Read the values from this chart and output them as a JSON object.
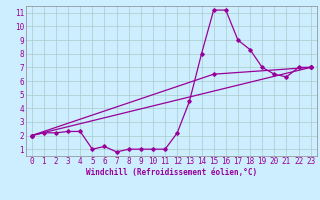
{
  "background_color": "#cceeff",
  "grid_color": "#aacccc",
  "line_color": "#990099",
  "xlabel": "Windchill (Refroidissement éolien,°C)",
  "xlim": [
    -0.5,
    23.5
  ],
  "ylim": [
    0.5,
    11.5
  ],
  "xticks": [
    0,
    1,
    2,
    3,
    4,
    5,
    6,
    7,
    8,
    9,
    10,
    11,
    12,
    13,
    14,
    15,
    16,
    17,
    18,
    19,
    20,
    21,
    22,
    23
  ],
  "yticks": [
    1,
    2,
    3,
    4,
    5,
    6,
    7,
    8,
    9,
    10,
    11
  ],
  "line1_x": [
    0,
    1,
    2,
    3,
    4,
    5,
    6,
    7,
    8,
    9,
    10,
    11,
    12,
    13,
    14,
    15,
    16,
    17,
    18,
    19,
    20,
    21,
    22,
    23
  ],
  "line1_y": [
    2.0,
    2.2,
    2.2,
    2.3,
    2.3,
    1.0,
    1.2,
    0.8,
    1.0,
    1.0,
    1.0,
    1.0,
    2.2,
    4.5,
    8.0,
    11.2,
    11.2,
    9.0,
    8.3,
    7.0,
    6.5,
    6.3,
    7.0,
    7.0
  ],
  "line2_x": [
    0,
    23
  ],
  "line2_y": [
    2.0,
    7.0
  ],
  "line3_x": [
    0,
    15,
    23
  ],
  "line3_y": [
    2.0,
    6.5,
    7.0
  ],
  "tick_fontsize": 5.5,
  "xlabel_fontsize": 5.5
}
